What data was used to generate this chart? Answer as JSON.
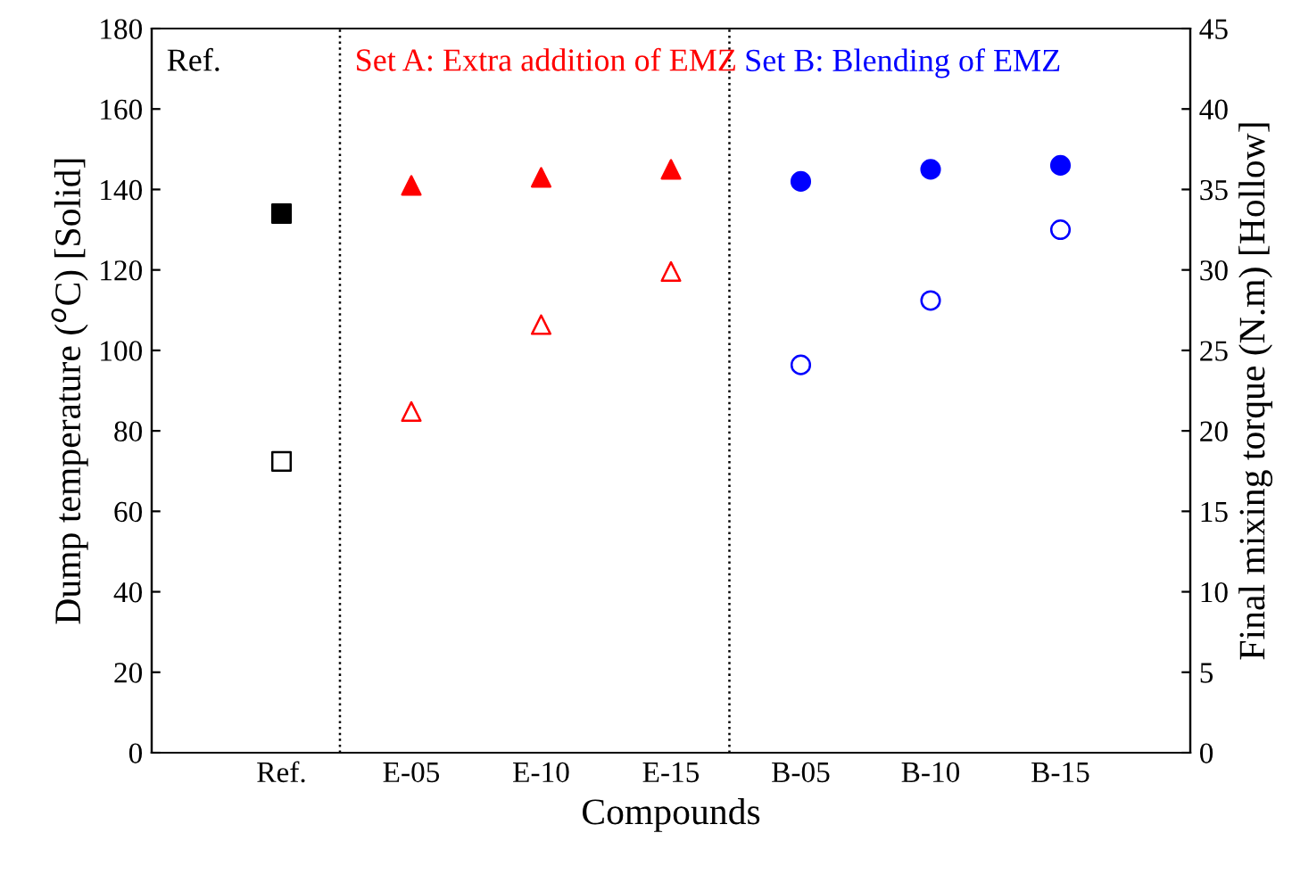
{
  "chart_data": {
    "type": "scatter",
    "xlabel": "Compounds",
    "ylabel": "Dump temperature ($^{o}$C) [Solid]",
    "y2label": "Final mixing torque (N.m) [Hollow]",
    "categories": [
      null,
      "Ref.",
      "E-05",
      "E-10",
      "E-15",
      "B-05",
      "B-10",
      "B-15",
      null
    ],
    "ylim": [
      0,
      180
    ],
    "yticks": [
      0,
      20,
      40,
      60,
      80,
      100,
      120,
      140,
      160,
      180
    ],
    "y2lim": [
      0,
      45
    ],
    "y2ticks": [
      0,
      5,
      10,
      15,
      20,
      25,
      30,
      35,
      40,
      45
    ],
    "series": [
      {
        "color": "#000000",
        "marker": "square",
        "values": [
          null,
          134,
          null,
          null,
          null,
          null,
          null,
          null,
          null
        ]
      },
      {
        "color": "#ff0000",
        "marker": "triangle",
        "values": [
          null,
          null,
          141,
          143,
          145,
          null,
          null,
          null,
          null
        ]
      },
      {
        "color": "#0000ff",
        "marker": "circle",
        "values": [
          null,
          null,
          null,
          null,
          null,
          142,
          145,
          146,
          null
        ]
      },
      {
        "color": "#000000",
        "marker": "square",
        "axis": "y2",
        "values": [
          null,
          18.1,
          null,
          null,
          null,
          null,
          null,
          null,
          null
        ]
      },
      {
        "color": "#ff0000",
        "marker": "triangle",
        "axis": "y2",
        "values": [
          null,
          null,
          21.2,
          26.6,
          29.9,
          null,
          null,
          null,
          null
        ]
      },
      {
        "color": "#0000ff",
        "marker": "circle",
        "axis": "y2",
        "values": [
          null,
          null,
          null,
          null,
          null,
          24.1,
          28.1,
          32.5,
          null
        ]
      }
    ],
    "annotations": [
      "Ref.",
      "Set A: Extra addition of EMZ",
      "Set B: Blending of EMZ"
    ],
    "grid": false,
    "legend": false
  }
}
